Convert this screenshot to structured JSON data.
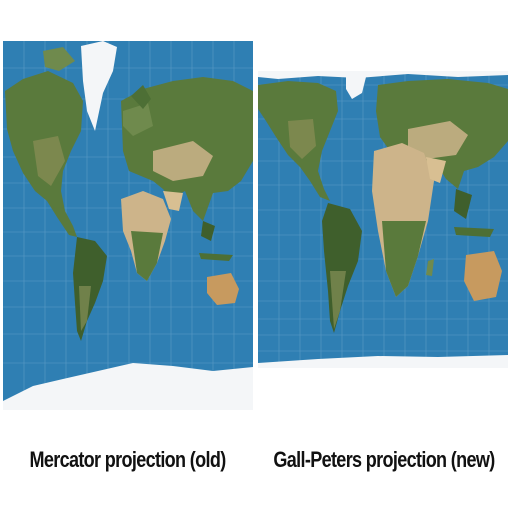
{
  "captions": {
    "mercator": "Mercator projection (old)",
    "gall_peters": "Gall-Peters projection (new)"
  },
  "colors": {
    "ocean": "#2f7fb3",
    "ocean_light": "#4b97c6",
    "land_green": "#5a7a3c",
    "land_dark": "#3f5f2c",
    "desert": "#cdb48a",
    "ice": "#f4f6f8",
    "grid": "#7fb3d6"
  },
  "maps": [
    {
      "id": "mercator",
      "projection": "Mercator"
    },
    {
      "id": "gallpeters",
      "projection": "Gall-Peters"
    }
  ]
}
